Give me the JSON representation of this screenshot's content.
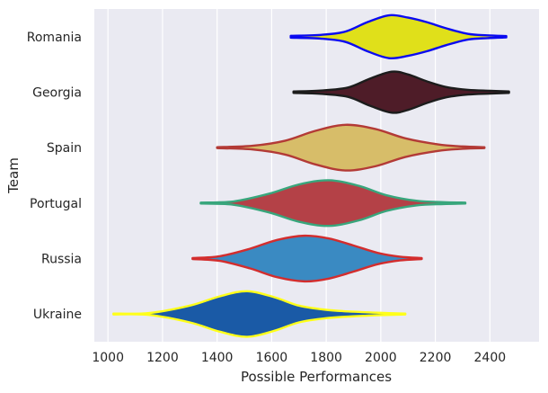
{
  "chart_data": {
    "type": "violin",
    "orientation": "horizontal",
    "xlabel": "Possible Performances",
    "ylabel": "Team",
    "xlim": [
      950,
      2580
    ],
    "xticks": [
      1000,
      1200,
      1400,
      1600,
      1800,
      2000,
      2200,
      2400
    ],
    "grid": true,
    "background": "#eaeaf2",
    "gridColor": "#ffffff",
    "categories": [
      "Romania",
      "Georgia",
      "Spain",
      "Portugal",
      "Russia",
      "Ukraine"
    ],
    "violins": [
      {
        "team": "Romania",
        "fill": "#e0e01a",
        "edge": "#0a0af0",
        "min": 1670,
        "max": 2460,
        "profile": [
          [
            1670,
            0.04
          ],
          [
            1780,
            0.08
          ],
          [
            1870,
            0.22
          ],
          [
            1950,
            0.62
          ],
          [
            2030,
            0.92
          ],
          [
            2100,
            0.82
          ],
          [
            2170,
            0.62
          ],
          [
            2240,
            0.36
          ],
          [
            2320,
            0.12
          ],
          [
            2390,
            0.06
          ],
          [
            2460,
            0.03
          ]
        ]
      },
      {
        "team": "Georgia",
        "fill": "#4e1c28",
        "edge": "#1c1c1c",
        "min": 1680,
        "max": 2470,
        "profile": [
          [
            1680,
            0.03
          ],
          [
            1780,
            0.07
          ],
          [
            1880,
            0.2
          ],
          [
            1960,
            0.58
          ],
          [
            2040,
            0.88
          ],
          [
            2100,
            0.76
          ],
          [
            2170,
            0.46
          ],
          [
            2240,
            0.22
          ],
          [
            2320,
            0.1
          ],
          [
            2400,
            0.06
          ],
          [
            2470,
            0.03
          ]
        ]
      },
      {
        "team": "Spain",
        "fill": "#d7bd69",
        "edge": "#b33a36",
        "min": 1400,
        "max": 2380,
        "profile": [
          [
            1400,
            0.02
          ],
          [
            1530,
            0.08
          ],
          [
            1650,
            0.3
          ],
          [
            1760,
            0.72
          ],
          [
            1870,
            0.98
          ],
          [
            1980,
            0.8
          ],
          [
            2090,
            0.4
          ],
          [
            2210,
            0.14
          ],
          [
            2300,
            0.05
          ],
          [
            2380,
            0.02
          ]
        ]
      },
      {
        "team": "Portugal",
        "fill": "#b44147",
        "edge": "#38a67c",
        "min": 1340,
        "max": 2310,
        "profile": [
          [
            1340,
            0.02
          ],
          [
            1460,
            0.07
          ],
          [
            1590,
            0.4
          ],
          [
            1700,
            0.8
          ],
          [
            1810,
            0.98
          ],
          [
            1920,
            0.74
          ],
          [
            2020,
            0.34
          ],
          [
            2130,
            0.1
          ],
          [
            2230,
            0.04
          ],
          [
            2310,
            0.02
          ]
        ]
      },
      {
        "team": "Russia",
        "fill": "#3a8ac2",
        "edge": "#d32d2d",
        "min": 1310,
        "max": 2150,
        "profile": [
          [
            1310,
            0.02
          ],
          [
            1410,
            0.1
          ],
          [
            1520,
            0.42
          ],
          [
            1620,
            0.8
          ],
          [
            1720,
            0.98
          ],
          [
            1810,
            0.86
          ],
          [
            1900,
            0.56
          ],
          [
            1990,
            0.24
          ],
          [
            2070,
            0.08
          ],
          [
            2150,
            0.02
          ]
        ]
      },
      {
        "team": "Ukraine",
        "fill": "#1a5aa6",
        "edge": "#ffff1a",
        "min": 1020,
        "max": 2090,
        "profile": [
          [
            1020,
            0.02
          ],
          [
            1150,
            0.04
          ],
          [
            1300,
            0.36
          ],
          [
            1410,
            0.76
          ],
          [
            1510,
            0.98
          ],
          [
            1610,
            0.72
          ],
          [
            1700,
            0.36
          ],
          [
            1800,
            0.18
          ],
          [
            1900,
            0.1
          ],
          [
            2000,
            0.05
          ],
          [
            2090,
            0.02
          ]
        ]
      }
    ]
  }
}
